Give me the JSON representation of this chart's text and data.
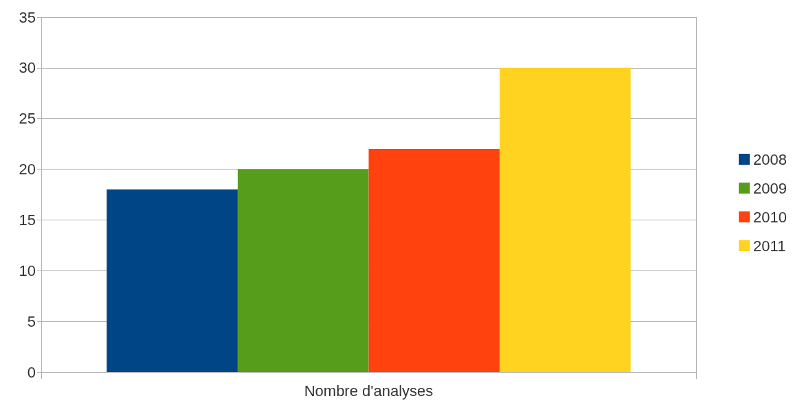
{
  "chart_data": {
    "type": "bar",
    "categories": [
      "Nombre d'analyses"
    ],
    "series": [
      {
        "name": "2008",
        "color": "#004586",
        "values": [
          18
        ]
      },
      {
        "name": "2009",
        "color": "#579d1c",
        "values": [
          20
        ]
      },
      {
        "name": "2010",
        "color": "#ff420e",
        "values": [
          22
        ]
      },
      {
        "name": "2011",
        "color": "#ffd320",
        "values": [
          30
        ]
      }
    ],
    "ylim": [
      0,
      35
    ],
    "yticks": [
      0,
      5,
      10,
      15,
      20,
      25,
      30,
      35
    ],
    "grid": "y",
    "legend": "right"
  }
}
